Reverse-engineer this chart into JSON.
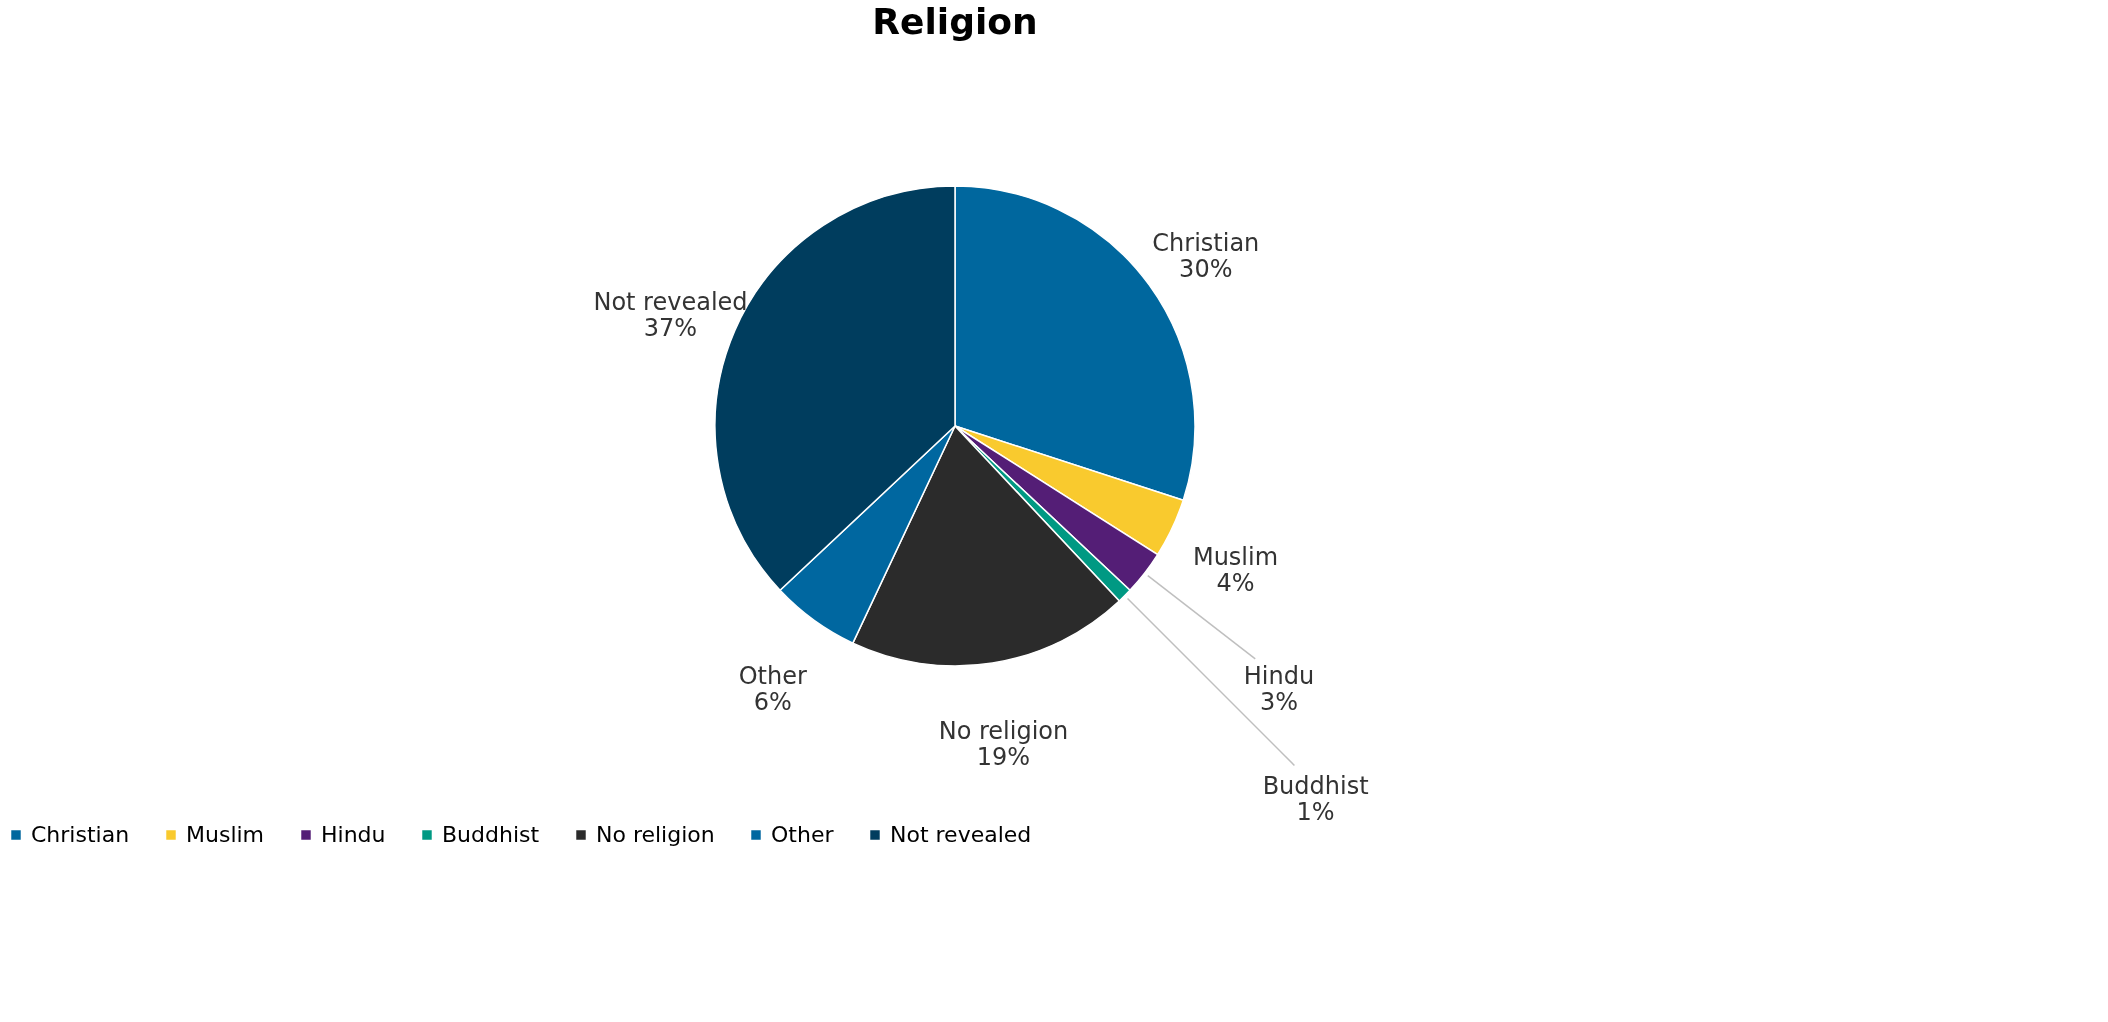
{
  "chart_data": {
    "type": "pie",
    "title": "Religion",
    "categories": [
      "Christian",
      "Muslim",
      "Hindu",
      "Buddhist",
      "No religion",
      "Other",
      "Not revealed"
    ],
    "values": [
      30,
      4,
      3,
      1,
      19,
      6,
      37
    ],
    "value_labels": [
      "30%",
      "4%",
      "3%",
      "1%",
      "19%",
      "6%",
      "37%"
    ],
    "colors": [
      "#00679e",
      "#f9ca2e",
      "#541e76",
      "#009983",
      "#2b2b2b",
      "#0067a0",
      "#003d5e"
    ],
    "legend": "bottom"
  }
}
